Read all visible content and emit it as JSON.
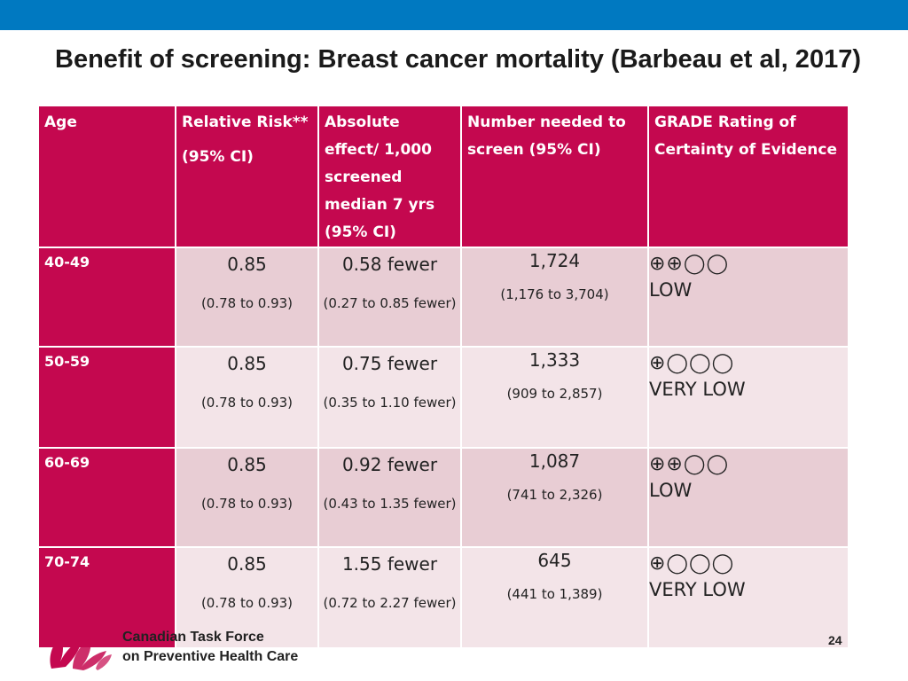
{
  "slide": {
    "title": "Benefit of screening: Breast cancer mortality (Barbeau et al, 2017)",
    "page_number": "24",
    "org_line1": "Canadian Task Force",
    "org_line2": "on Preventive Health Care",
    "accent_color": "#c4084f",
    "topbar_color": "#0079c1"
  },
  "table": {
    "headers": {
      "age": "Age",
      "rr": "Relative Risk**",
      "rr_sub": "(95% CI)",
      "abs": "Absolute effect/ 1,000 screened median 7 yrs (95% CI)",
      "nnt": "Number needed to screen (95% CI)",
      "grade": "GRADE Rating of Certainty of Evidence"
    },
    "rows": [
      {
        "age": "40-49",
        "rr": "0.85",
        "rr_ci": "(0.78 to 0.93)",
        "abs": "0.58 fewer",
        "abs_ci": "(0.27 to 0.85 fewer)",
        "nnt": "1,724",
        "nnt_ci": "(1,176 to 3,704)",
        "grade_symbols": "⊕⊕◯◯",
        "grade": "LOW"
      },
      {
        "age": "50-59",
        "rr": "0.85",
        "rr_ci": "(0.78 to 0.93)",
        "abs": "0.75 fewer",
        "abs_ci": "(0.35 to 1.10 fewer)",
        "nnt": "1,333",
        "nnt_ci": "(909 to 2,857)",
        "grade_symbols": "⊕◯◯◯",
        "grade": "VERY LOW"
      },
      {
        "age": "60-69",
        "rr": "0.85",
        "rr_ci": "(0.78 to 0.93)",
        "abs": "0.92 fewer",
        "abs_ci": "(0.43 to 1.35 fewer)",
        "nnt": "1,087",
        "nnt_ci": "(741 to 2,326)",
        "grade_symbols": "⊕⊕◯◯",
        "grade": "LOW"
      },
      {
        "age": "70-74",
        "rr": "0.85",
        "rr_ci": "(0.78 to 0.93)",
        "abs": "1.55 fewer",
        "abs_ci": "(0.72 to 2.27 fewer)",
        "nnt": "645",
        "nnt_ci": "(441 to 1,389)",
        "grade_symbols": "⊕◯◯◯",
        "grade": "VERY LOW"
      }
    ]
  }
}
